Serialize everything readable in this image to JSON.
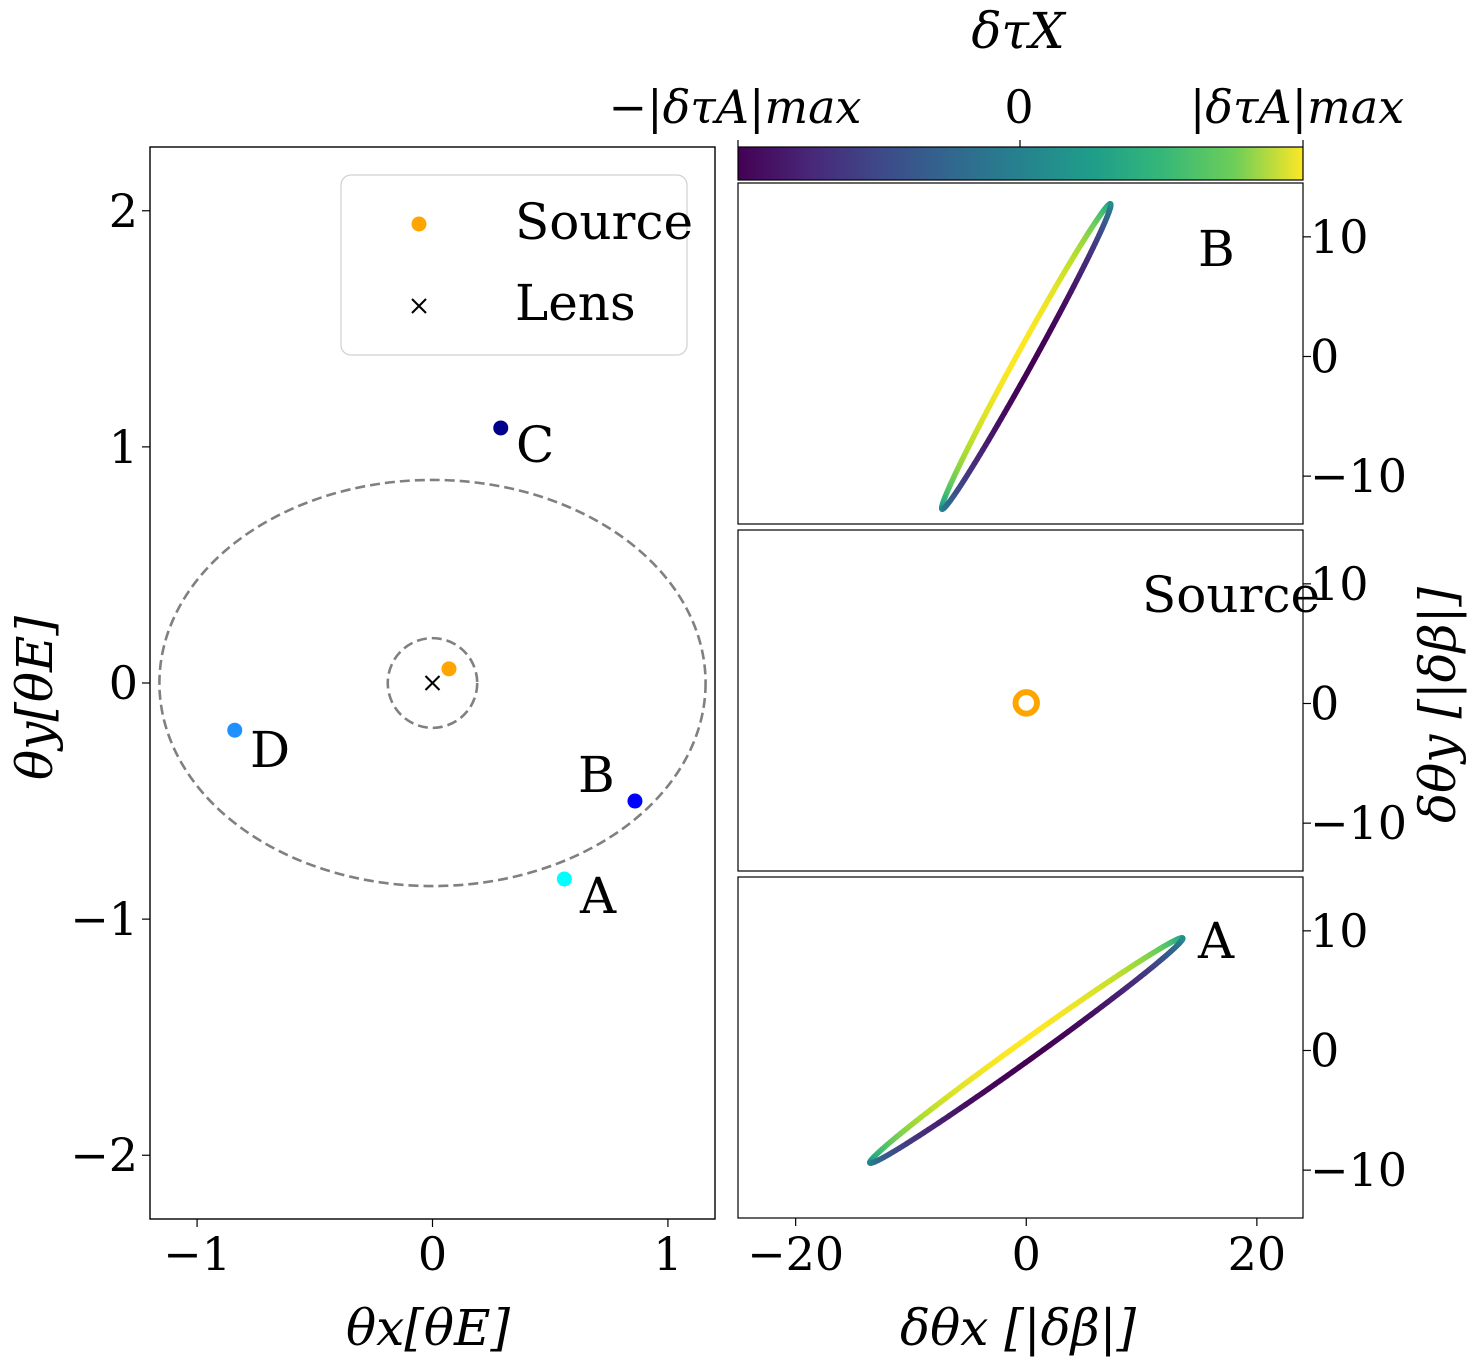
{
  "chart_data": [
    {
      "type": "scatter",
      "panel": "image-plane",
      "xlabel": "θx[θE]",
      "ylabel": "θy[θE]",
      "xlim": [
        -1.2,
        1.2
      ],
      "ylim": [
        -2.27,
        2.27
      ],
      "xticks": [
        -1,
        0,
        1
      ],
      "xtick_labels": [
        "−1",
        "0",
        "1"
      ],
      "yticks": [
        -2,
        -1,
        0,
        1,
        2
      ],
      "ytick_labels": [
        "−2",
        "−1",
        "0",
        "1",
        "2"
      ],
      "points": [
        {
          "name": "A",
          "x": 0.56,
          "y": -0.83,
          "color": "#00ffff"
        },
        {
          "name": "B",
          "x": 0.86,
          "y": -0.5,
          "color": "#0000ff"
        },
        {
          "name": "C",
          "x": 0.29,
          "y": 1.08,
          "color": "#00008b"
        },
        {
          "name": "D",
          "x": -0.84,
          "y": -0.2,
          "color": "#1e90ff"
        }
      ],
      "source": {
        "name": "Source",
        "x": 0.07,
        "y": 0.06,
        "color": "#ffa500"
      },
      "lens": {
        "name": "Lens",
        "x": 0.0,
        "y": 0.0,
        "marker": "x"
      },
      "curves": [
        {
          "kind": "ellipse",
          "style": "dashed",
          "color": "#808080",
          "cx": 0,
          "cy": 0,
          "rx": 1.16,
          "ry": 0.86
        },
        {
          "kind": "circle",
          "style": "dashed",
          "color": "#808080",
          "cx": 0,
          "cy": 0,
          "r": 0.19
        }
      ],
      "legend": {
        "placement": "top-right",
        "entries": [
          "Source",
          "Lens"
        ]
      }
    },
    {
      "type": "line",
      "panel": "image-shape",
      "label": "B",
      "xlim": [
        -25,
        24
      ],
      "ylim": [
        -14,
        14.5
      ],
      "yticks": [
        -10,
        0,
        10
      ],
      "ytick_labels": [
        "−10",
        "0",
        "10"
      ],
      "ellipse": {
        "cx": 0,
        "cy": 0,
        "semi_major": 14.7,
        "semi_minor": 0.75,
        "angle_deg": 60.2,
        "color_phase_deg": 0
      }
    },
    {
      "type": "line",
      "panel": "source-shape",
      "label": "Source",
      "xlim": [
        -25,
        24
      ],
      "ylim": [
        -14,
        14.5
      ],
      "yticks": [
        -10,
        0,
        10
      ],
      "ytick_labels": [
        "−10",
        "0",
        "10"
      ],
      "circle": {
        "cx": 0,
        "cy": 0.05,
        "r": 0.8,
        "color": "#ffa500"
      }
    },
    {
      "type": "line",
      "panel": "image-shape",
      "label": "A",
      "xlim": [
        -25,
        24
      ],
      "ylim": [
        -14,
        14.5
      ],
      "xticks": [
        -20,
        0,
        20
      ],
      "xtick_labels": [
        "−20",
        "0",
        "20"
      ],
      "yticks": [
        -10,
        0,
        10
      ],
      "ytick_labels": [
        "−10",
        "0",
        "10"
      ],
      "xlabel": "δθx [|δβ|]",
      "ylabel": "δθy [|δβ|]",
      "ellipse": {
        "cx": 0,
        "cy": 0,
        "semi_major": 16.5,
        "semi_minor": 0.8,
        "angle_deg": 34.7,
        "color_phase_deg": 0
      }
    },
    {
      "type": "colorbar",
      "title": "δτX",
      "tick_labels": [
        "−|δτA|max",
        "0",
        "|δτA|max"
      ],
      "colormap": "viridis"
    }
  ]
}
